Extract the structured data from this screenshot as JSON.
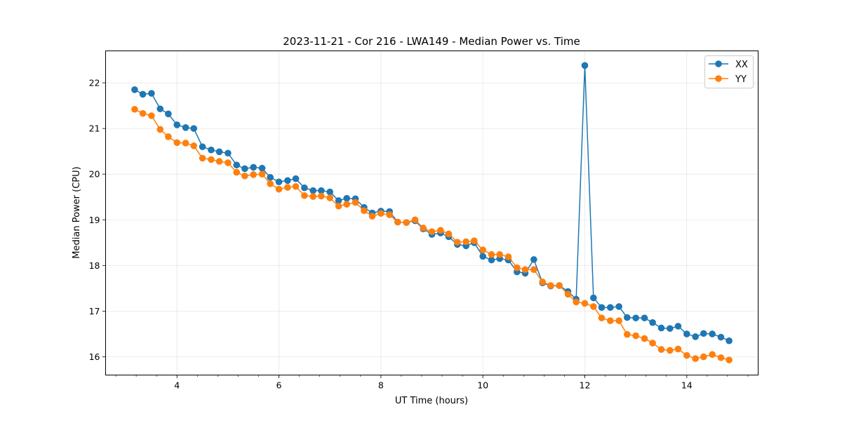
{
  "chart_data": {
    "type": "line",
    "title": "2023-11-21 - Cor 216 - LWA149 - Median Power vs. Time",
    "xlabel": "UT Time (hours)",
    "ylabel": "Median Power (CPU)",
    "xlim": [
      2.6,
      15.4
    ],
    "ylim": [
      15.6,
      22.7
    ],
    "xticks": [
      4,
      6,
      8,
      10,
      12,
      14
    ],
    "xtick_labels": [
      "4",
      "6",
      "8",
      "10",
      "12",
      "14"
    ],
    "yticks": [
      16,
      17,
      18,
      19,
      20,
      21,
      22
    ],
    "ytick_labels": [
      "16",
      "17",
      "18",
      "19",
      "20",
      "21",
      "22"
    ],
    "grid": true,
    "legend_position": "top-right",
    "colors": {
      "XX": "#1f77b4",
      "YY": "#ff7f0e"
    },
    "x": [
      3.17,
      3.33,
      3.5,
      3.67,
      3.83,
      4.0,
      4.17,
      4.33,
      4.5,
      4.67,
      4.83,
      5.0,
      5.17,
      5.33,
      5.5,
      5.67,
      5.83,
      6.0,
      6.17,
      6.33,
      6.5,
      6.67,
      6.83,
      7.0,
      7.17,
      7.33,
      7.5,
      7.67,
      7.83,
      8.0,
      8.17,
      8.33,
      8.5,
      8.67,
      8.83,
      9.0,
      9.17,
      9.33,
      9.5,
      9.67,
      9.83,
      10.0,
      10.17,
      10.33,
      10.5,
      10.67,
      10.83,
      11.0,
      11.17,
      11.33,
      11.5,
      11.67,
      11.83,
      12.0,
      12.17,
      12.33,
      12.5,
      12.67,
      12.83,
      13.0,
      13.17,
      13.33,
      13.5,
      13.67,
      13.83,
      14.0,
      14.17,
      14.33,
      14.5,
      14.67,
      14.83
    ],
    "series": [
      {
        "name": "XX",
        "values": [
          21.85,
          21.75,
          21.77,
          21.43,
          21.32,
          21.08,
          21.02,
          21.0,
          20.6,
          20.53,
          20.49,
          20.46,
          20.2,
          20.12,
          20.15,
          20.13,
          19.93,
          19.83,
          19.86,
          19.9,
          19.7,
          19.64,
          19.64,
          19.61,
          19.42,
          19.47,
          19.46,
          19.27,
          19.15,
          19.19,
          19.18,
          18.95,
          18.94,
          18.98,
          18.8,
          18.68,
          18.71,
          18.63,
          18.46,
          18.43,
          18.5,
          18.2,
          18.12,
          18.15,
          18.12,
          17.86,
          17.83,
          18.13,
          17.62,
          17.55,
          17.56,
          17.43,
          17.26,
          22.38,
          17.29,
          17.08,
          17.08,
          17.1,
          16.86,
          16.85,
          16.85,
          16.75,
          16.63,
          16.62,
          16.67,
          16.5,
          16.44,
          16.51,
          16.5,
          16.43,
          16.35
        ]
      },
      {
        "name": "YY",
        "values": [
          21.42,
          21.33,
          21.28,
          20.98,
          20.82,
          20.69,
          20.68,
          20.62,
          20.35,
          20.32,
          20.28,
          20.25,
          20.04,
          19.96,
          19.99,
          20.0,
          19.79,
          19.67,
          19.71,
          19.73,
          19.53,
          19.51,
          19.52,
          19.48,
          19.3,
          19.34,
          19.38,
          19.2,
          19.08,
          19.14,
          19.11,
          18.95,
          18.94,
          19.0,
          18.82,
          18.74,
          18.77,
          18.69,
          18.51,
          18.52,
          18.54,
          18.34,
          18.24,
          18.24,
          18.19,
          17.95,
          17.91,
          17.91,
          17.64,
          17.56,
          17.56,
          17.37,
          17.2,
          17.17,
          17.1,
          16.85,
          16.79,
          16.79,
          16.49,
          16.46,
          16.4,
          16.3,
          16.16,
          16.14,
          16.17,
          16.03,
          15.96,
          16.0,
          16.05,
          15.98,
          15.93
        ]
      }
    ]
  }
}
